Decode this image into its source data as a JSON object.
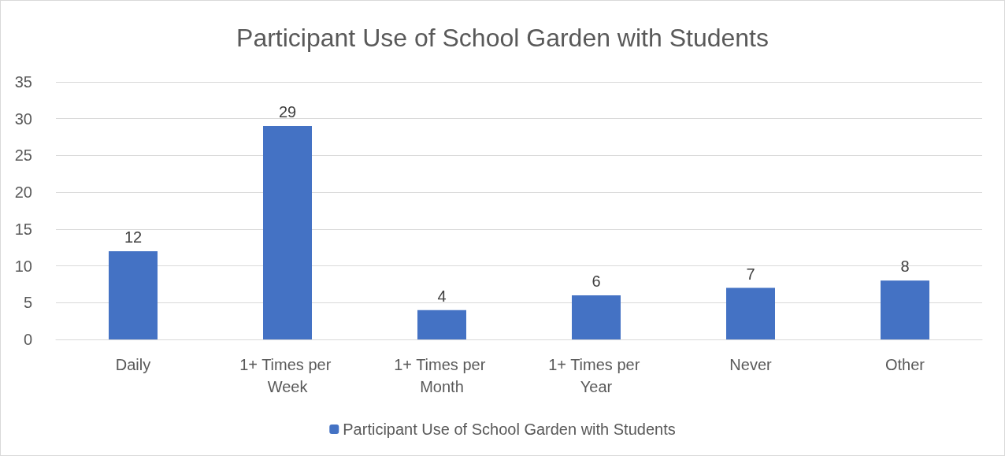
{
  "chart_data": {
    "type": "bar",
    "title": "Participant Use of School Garden with Students",
    "categories": [
      "Daily",
      "1+ Times per Week",
      "1+ Times per Month",
      "1+ Times per Year",
      "Never",
      "Other"
    ],
    "series": [
      {
        "name": "Participant Use of School Garden with Students",
        "color": "#4472c4",
        "values": [
          12,
          29,
          4,
          6,
          7,
          8
        ]
      }
    ],
    "ylim": [
      0,
      35
    ],
    "yticks": [
      0,
      5,
      10,
      15,
      20,
      25,
      30,
      35
    ],
    "grid": "y",
    "legend": "bottom",
    "data_labels": true
  }
}
